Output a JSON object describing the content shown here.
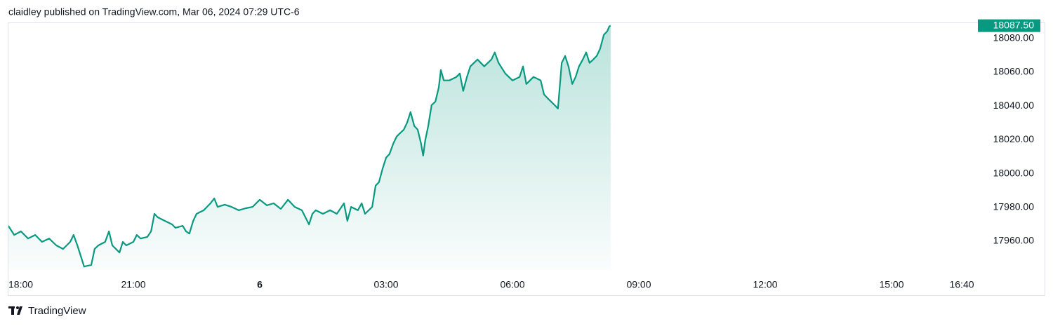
{
  "chart_data": {
    "type": "area",
    "title": "claidley published on TradingView.com, Mar 06, 2024 07:29 UTC-6",
    "source": "TradingView",
    "color": "#089981",
    "x": [
      0.03,
      0.17,
      0.33,
      0.5,
      0.67,
      0.83,
      1,
      1.17,
      1.33,
      1.5,
      1.58,
      1.67,
      1.75,
      1.83,
      2,
      2.08,
      2.17,
      2.33,
      2.42,
      2.5,
      2.67,
      2.75,
      2.83,
      3,
      3.08,
      3.17,
      3.33,
      3.42,
      3.5,
      3.58,
      3.75,
      3.92,
      4,
      4.17,
      4.25,
      4.33,
      4.42,
      4.5,
      4.67,
      4.83,
      4.92,
      5,
      5.17,
      5.33,
      5.5,
      5.67,
      5.83,
      6,
      6.17,
      6.33,
      6.5,
      6.67,
      6.83,
      7,
      7.17,
      7.25,
      7.33,
      7.5,
      7.67,
      7.83,
      8,
      8.08,
      8.17,
      8.33,
      8.42,
      8.5,
      8.67,
      8.75,
      8.83,
      8.92,
      9,
      9.08,
      9.17,
      9.25,
      9.33,
      9.42,
      9.5,
      9.58,
      9.67,
      9.75,
      9.83,
      9.88,
      9.93,
      10,
      10.08,
      10.17,
      10.25,
      10.3,
      10.37,
      10.5,
      10.67,
      10.75,
      10.83,
      10.92,
      11,
      11.17,
      11.33,
      11.5,
      11.58,
      11.67,
      11.83,
      12,
      12.17,
      12.25,
      12.33,
      12.5,
      12.67,
      12.75,
      12.83,
      13,
      13.08,
      13.17,
      13.25,
      13.33,
      13.42,
      13.5,
      13.58,
      13.67,
      13.75,
      13.83,
      13.92,
      14,
      14.08,
      14.17,
      14.25,
      14.3,
      14.33
    ],
    "values": [
      17969.1,
      17963.7,
      17965.8,
      17961.6,
      17963.7,
      17959.6,
      17961.6,
      17957.5,
      17955.4,
      17959.6,
      17963.7,
      17957.5,
      17951.3,
      17945.0,
      17945.9,
      17955.4,
      17957.5,
      17959.6,
      17965.8,
      17957.5,
      17953.3,
      17959.6,
      17957.5,
      17959.6,
      17963.7,
      17961.6,
      17962.5,
      17965.8,
      17976.2,
      17974.1,
      17972.0,
      17969.9,
      17967.9,
      17969.1,
      17965.8,
      17964.5,
      17972.0,
      17976.2,
      17978.3,
      17982.4,
      17985.3,
      17980.3,
      17981.6,
      17980.3,
      17978.3,
      17979.5,
      17980.3,
      17984.5,
      17981.2,
      17982.4,
      17979.1,
      17984.5,
      17980.3,
      17978.3,
      17969.9,
      17976.2,
      17978.3,
      17976.2,
      17978.3,
      17976.2,
      17982.4,
      17972.0,
      17980.3,
      17978.3,
      17982.4,
      17976.2,
      17980.3,
      17992.8,
      17994.9,
      18003.2,
      18009.4,
      18011.5,
      18017.7,
      18021.9,
      18023.9,
      18026.0,
      18030.2,
      18036.4,
      18028.1,
      18026.0,
      18017.7,
      18010.6,
      18019.8,
      18028.1,
      18040.5,
      18042.6,
      18050.9,
      18061.3,
      18055.1,
      18055.1,
      18057.2,
      18059.2,
      18048.9,
      18057.2,
      18063.4,
      18067.5,
      18063.4,
      18067.5,
      18071.7,
      18065.5,
      18059.2,
      18055.1,
      18057.2,
      18063.4,
      18053.0,
      18057.2,
      18055.1,
      18046.8,
      18044.7,
      18040.5,
      18038.5,
      18065.5,
      18069.6,
      18063.4,
      18053.0,
      18057.2,
      18063.4,
      18067.5,
      18071.7,
      18065.5,
      18067.5,
      18069.6,
      18073.8,
      18082.1,
      18084.2,
      18087.1,
      18087.5
    ],
    "last_price": {
      "value": 18087.5,
      "label": "18087.50"
    },
    "xlim": [
      0,
      23.05
    ],
    "xticks": [
      {
        "value": 0,
        "label": "18:00"
      },
      {
        "value": 3,
        "label": "21:00"
      },
      {
        "value": 6,
        "label": "6"
      },
      {
        "value": 9,
        "label": "03:00"
      },
      {
        "value": 12,
        "label": "06:00"
      },
      {
        "value": 15,
        "label": "09:00"
      },
      {
        "value": 18,
        "label": "12:00"
      },
      {
        "value": 21,
        "label": "15:00"
      },
      {
        "value": 22.667,
        "label": "16:40"
      }
    ],
    "ylim": [
      17943,
      18089
    ],
    "yticks": [
      {
        "value": 17960,
        "label": "17960.00"
      },
      {
        "value": 17980,
        "label": "17980.00"
      },
      {
        "value": 18000,
        "label": "18000.00"
      },
      {
        "value": 18020,
        "label": "18020.00"
      },
      {
        "value": 18040,
        "label": "18040.00"
      },
      {
        "value": 18060,
        "label": "18060.00"
      },
      {
        "value": 18080,
        "label": "18080.00"
      }
    ]
  }
}
